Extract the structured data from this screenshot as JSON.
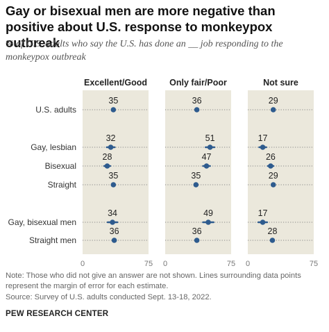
{
  "title": "Gay or bisexual men are more negative than positive about U.S. response to monkeypox outbreak",
  "subtitle": "% of U.S. adults who say the U.S. has done an __ job responding to the monkeypox outbreak",
  "note": "Note: Those who did not give an answer are not shown. Lines surrounding data points represent the margin of error for each estimate.",
  "source": "Source: Survey of U.S. adults conducted Sept. 13-18, 2022.",
  "brand": "PEW RESEARCH CENTER",
  "colors": {
    "panel_bg": "#ebe8dc",
    "dot": "#2e5b8e",
    "error_bar": "#2e5b8e",
    "dotted_line": "#888888"
  },
  "chart_data": {
    "type": "scatter",
    "subtype": "dot-plot-with-error-bars",
    "xlim": [
      0,
      75
    ],
    "x_ticks": [
      "0",
      "75"
    ],
    "categories": [
      "U.S. adults",
      "Gay, lesbian",
      "Bisexual",
      "Straight",
      "Gay, bisexual men",
      "Straight men"
    ],
    "groups": [
      [
        0
      ],
      [
        1,
        2,
        3
      ],
      [
        4,
        5
      ]
    ],
    "series": [
      {
        "name": "Excellent/Good",
        "values": [
          35,
          32,
          28,
          35,
          34,
          36
        ],
        "moe": [
          0.8,
          4.5,
          3.5,
          1.2,
          5.5,
          1.8
        ]
      },
      {
        "name": "Only fair/Poor",
        "values": [
          36,
          51,
          47,
          35,
          49,
          36
        ],
        "moe": [
          0.8,
          5.0,
          4.0,
          1.2,
          6.0,
          1.8
        ]
      },
      {
        "name": "Not sure",
        "values": [
          29,
          17,
          26,
          29,
          17,
          28
        ],
        "moe": [
          0.8,
          4.0,
          3.2,
          1.2,
          5.0,
          1.8
        ]
      }
    ]
  }
}
